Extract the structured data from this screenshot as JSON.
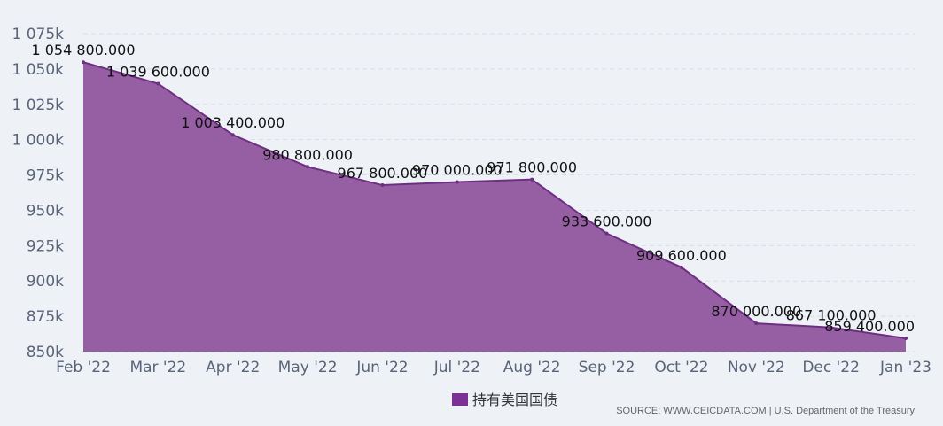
{
  "chart_data": {
    "type": "area",
    "categories": [
      "Feb '22",
      "Mar '22",
      "Apr '22",
      "May '22",
      "Jun '22",
      "Jul '22",
      "Aug '22",
      "Sep '22",
      "Oct '22",
      "Nov '22",
      "Dec '22",
      "Jan '23"
    ],
    "series": [
      {
        "name": "持有美国国债",
        "values": [
          1054800,
          1039600,
          1003400,
          980800,
          967800,
          970000,
          971800,
          933600,
          909600,
          870000,
          867100,
          859400
        ]
      }
    ],
    "data_labels": [
      "1 054 800.000",
      "1 039 600.000",
      "1 003 400.000",
      "980 800.000",
      "967 800.000",
      "970 000.000",
      "971 800.000",
      "933 600.000",
      "909 600.000",
      "870 000.000",
      "867 100.000",
      "859 400.000"
    ],
    "y_ticks": [
      850000,
      875000,
      900000,
      925000,
      950000,
      975000,
      1000000,
      1025000,
      1050000,
      1075000
    ],
    "y_tick_labels": [
      "850k",
      "875k",
      "900k",
      "925k",
      "950k",
      "975k",
      "1 000k",
      "1 025k",
      "1 050k",
      "1 075k"
    ],
    "ylim": [
      850000,
      1075000
    ],
    "grid": true,
    "legend_position": "bottom-center",
    "colors": {
      "area": "#8e529c",
      "line": "#6e2f82",
      "grid": "#d6dde6",
      "background": "#eef2f7"
    }
  },
  "legend": {
    "label": "持有美国国债"
  },
  "source": {
    "text": "SOURCE: WWW.CEICDATA.COM | U.S. Department of the Treasury"
  }
}
